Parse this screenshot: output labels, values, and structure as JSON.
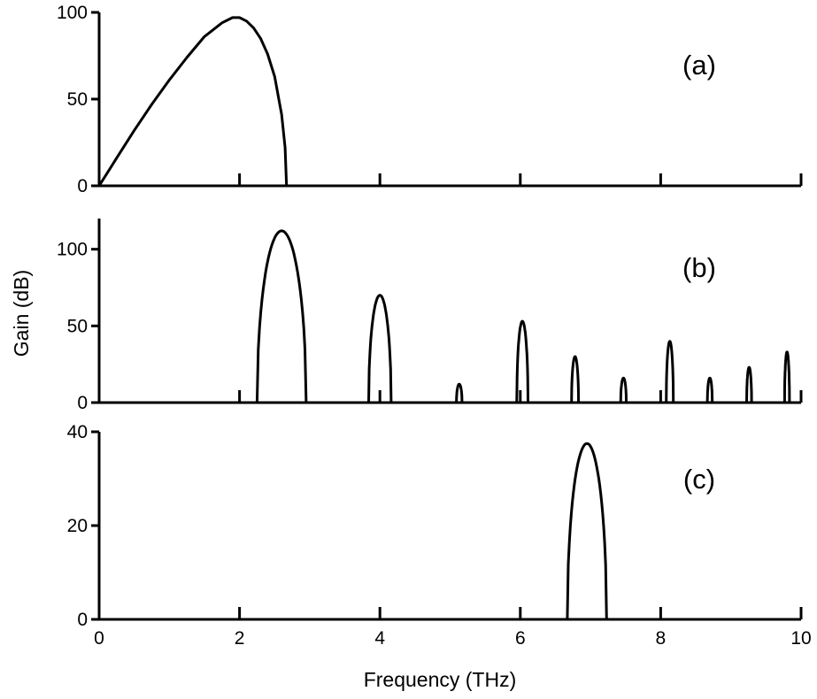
{
  "chart_data": [
    {
      "panel_label": "(a)",
      "type": "line",
      "xlim": [
        0,
        10
      ],
      "ylim": [
        0,
        100
      ],
      "yticks": [
        0,
        50,
        100
      ],
      "ytick_labels": [
        "0",
        "50",
        "100"
      ],
      "series": [
        {
          "x": [
            0,
            0.25,
            0.5,
            0.75,
            1.0,
            1.25,
            1.5,
            1.75,
            1.9,
            2.0,
            2.1,
            2.2,
            2.3,
            2.4,
            2.5,
            2.6,
            2.65,
            2.67
          ],
          "y": [
            0,
            16,
            32,
            47,
            61,
            74,
            86,
            94,
            97,
            97,
            95,
            91,
            85,
            76,
            63,
            41,
            22,
            0
          ]
        }
      ]
    },
    {
      "panel_label": "(b)",
      "type": "line",
      "xlim": [
        0,
        10
      ],
      "ylim": [
        0,
        120
      ],
      "yticks": [
        0,
        50,
        100
      ],
      "ytick_labels": [
        "0",
        "50",
        "100"
      ],
      "peaks": [
        {
          "center": 2.6,
          "height": 112,
          "width": 0.7
        },
        {
          "center": 4.0,
          "height": 70,
          "width": 0.32
        },
        {
          "center": 5.13,
          "height": 12,
          "width": 0.08
        },
        {
          "center": 6.03,
          "height": 53,
          "width": 0.16
        },
        {
          "center": 6.78,
          "height": 30,
          "width": 0.1
        },
        {
          "center": 7.47,
          "height": 16,
          "width": 0.08
        },
        {
          "center": 8.13,
          "height": 40,
          "width": 0.1
        },
        {
          "center": 8.7,
          "height": 16,
          "width": 0.07
        },
        {
          "center": 9.26,
          "height": 23,
          "width": 0.07
        },
        {
          "center": 9.8,
          "height": 33,
          "width": 0.07
        }
      ]
    },
    {
      "panel_label": "(c)",
      "type": "line",
      "xlim": [
        0,
        10
      ],
      "ylim": [
        0,
        40
      ],
      "yticks": [
        0,
        20,
        40
      ],
      "ytick_labels": [
        "0",
        "20",
        "40"
      ],
      "xticks": [
        0,
        2,
        4,
        6,
        8,
        10
      ],
      "xtick_labels": [
        "0",
        "2",
        "4",
        "6",
        "8",
        "10"
      ],
      "peaks": [
        {
          "center": 6.95,
          "height": 37.5,
          "width": 0.56
        }
      ]
    }
  ],
  "xlabel": "Frequency (THz)",
  "ylabel": "Gain (dB)"
}
